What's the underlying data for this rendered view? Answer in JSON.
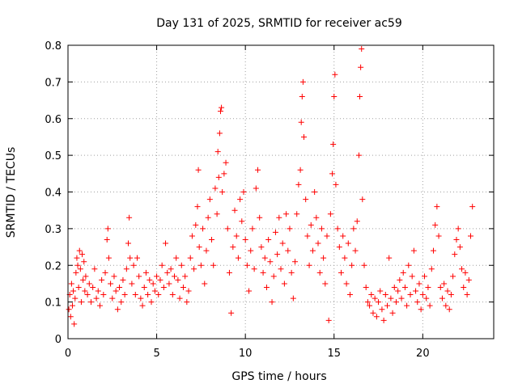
{
  "chart_data": {
    "type": "scatter",
    "title": "Day 131 of 2025, SRMTID for receiver ac59",
    "xlabel": "GPS time / hours",
    "ylabel": "SRMTID / TECUs",
    "xlim": [
      0,
      24
    ],
    "ylim": [
      0,
      0.8
    ],
    "xticks": [
      0,
      5,
      10,
      15,
      20
    ],
    "yticks": [
      0,
      0.1,
      0.2,
      0.3,
      0.4,
      0.5,
      0.6,
      0.7,
      0.8
    ],
    "xtick_labels": [
      "0",
      "5",
      "10",
      "15",
      "20"
    ],
    "ytick_labels": [
      "0",
      "0.1",
      "0.2",
      "0.3",
      "0.4",
      "0.5",
      "0.6",
      "0.7",
      "0.8"
    ],
    "grid": true,
    "marker": "+",
    "color": "#ff0000",
    "series": [
      {
        "name": "SRMTID",
        "points": [
          [
            0.05,
            0.08
          ],
          [
            0.1,
            0.12
          ],
          [
            0.15,
            0.06
          ],
          [
            0.2,
            0.15
          ],
          [
            0.25,
            0.09
          ],
          [
            0.3,
            0.13
          ],
          [
            0.35,
            0.04
          ],
          [
            0.4,
            0.11
          ],
          [
            0.45,
            0.18
          ],
          [
            0.5,
            0.22
          ],
          [
            0.55,
            0.2
          ],
          [
            0.6,
            0.14
          ],
          [
            0.65,
            0.24
          ],
          [
            0.7,
            0.19
          ],
          [
            0.75,
            0.1
          ],
          [
            0.8,
            0.23
          ],
          [
            0.85,
            0.16
          ],
          [
            0.9,
            0.21
          ],
          [
            0.95,
            0.13
          ],
          [
            1.0,
            0.17
          ],
          [
            1.1,
            0.12
          ],
          [
            1.2,
            0.15
          ],
          [
            1.3,
            0.1
          ],
          [
            1.4,
            0.14
          ],
          [
            1.5,
            0.19
          ],
          [
            1.6,
            0.11
          ],
          [
            1.7,
            0.13
          ],
          [
            1.8,
            0.09
          ],
          [
            1.9,
            0.16
          ],
          [
            2.0,
            0.12
          ],
          [
            2.1,
            0.18
          ],
          [
            2.2,
            0.27
          ],
          [
            2.25,
            0.3
          ],
          [
            2.3,
            0.22
          ],
          [
            2.4,
            0.15
          ],
          [
            2.5,
            0.11
          ],
          [
            2.6,
            0.17
          ],
          [
            2.7,
            0.13
          ],
          [
            2.8,
            0.08
          ],
          [
            2.9,
            0.14
          ],
          [
            3.0,
            0.1
          ],
          [
            3.1,
            0.16
          ],
          [
            3.2,
            0.12
          ],
          [
            3.3,
            0.19
          ],
          [
            3.4,
            0.26
          ],
          [
            3.45,
            0.33
          ],
          [
            3.5,
            0.22
          ],
          [
            3.6,
            0.15
          ],
          [
            3.7,
            0.2
          ],
          [
            3.8,
            0.12
          ],
          [
            3.9,
            0.22
          ],
          [
            4.0,
            0.17
          ],
          [
            4.1,
            0.11
          ],
          [
            4.2,
            0.09
          ],
          [
            4.3,
            0.14
          ],
          [
            4.4,
            0.18
          ],
          [
            4.5,
            0.12
          ],
          [
            4.6,
            0.16
          ],
          [
            4.7,
            0.1
          ],
          [
            4.8,
            0.15
          ],
          [
            4.9,
            0.13
          ],
          [
            5.0,
            0.17
          ],
          [
            5.1,
            0.12
          ],
          [
            5.2,
            0.16
          ],
          [
            5.3,
            0.2
          ],
          [
            5.4,
            0.14
          ],
          [
            5.5,
            0.26
          ],
          [
            5.6,
            0.18
          ],
          [
            5.7,
            0.15
          ],
          [
            5.8,
            0.19
          ],
          [
            5.9,
            0.12
          ],
          [
            6.0,
            0.17
          ],
          [
            6.1,
            0.22
          ],
          [
            6.2,
            0.16
          ],
          [
            6.3,
            0.11
          ],
          [
            6.4,
            0.2
          ],
          [
            6.5,
            0.14
          ],
          [
            6.6,
            0.17
          ],
          [
            6.7,
            0.1
          ],
          [
            6.8,
            0.13
          ],
          [
            6.9,
            0.22
          ],
          [
            7.0,
            0.28
          ],
          [
            7.1,
            0.19
          ],
          [
            7.2,
            0.31
          ],
          [
            7.3,
            0.36
          ],
          [
            7.35,
            0.46
          ],
          [
            7.4,
            0.25
          ],
          [
            7.5,
            0.2
          ],
          [
            7.6,
            0.3
          ],
          [
            7.7,
            0.15
          ],
          [
            7.8,
            0.24
          ],
          [
            7.9,
            0.33
          ],
          [
            8.0,
            0.38
          ],
          [
            8.1,
            0.27
          ],
          [
            8.2,
            0.2
          ],
          [
            8.3,
            0.41
          ],
          [
            8.4,
            0.34
          ],
          [
            8.45,
            0.51
          ],
          [
            8.5,
            0.44
          ],
          [
            8.55,
            0.56
          ],
          [
            8.6,
            0.62
          ],
          [
            8.65,
            0.63
          ],
          [
            8.7,
            0.4
          ],
          [
            8.8,
            0.45
          ],
          [
            8.9,
            0.48
          ],
          [
            9.0,
            0.3
          ],
          [
            9.1,
            0.18
          ],
          [
            9.2,
            0.07
          ],
          [
            9.3,
            0.25
          ],
          [
            9.4,
            0.35
          ],
          [
            9.5,
            0.28
          ],
          [
            9.6,
            0.22
          ],
          [
            9.7,
            0.38
          ],
          [
            9.8,
            0.32
          ],
          [
            9.9,
            0.4
          ],
          [
            10.0,
            0.27
          ],
          [
            10.1,
            0.2
          ],
          [
            10.2,
            0.13
          ],
          [
            10.3,
            0.24
          ],
          [
            10.4,
            0.3
          ],
          [
            10.5,
            0.19
          ],
          [
            10.6,
            0.41
          ],
          [
            10.7,
            0.46
          ],
          [
            10.8,
            0.33
          ],
          [
            10.9,
            0.25
          ],
          [
            11.0,
            0.18
          ],
          [
            11.1,
            0.22
          ],
          [
            11.2,
            0.14
          ],
          [
            11.3,
            0.27
          ],
          [
            11.4,
            0.21
          ],
          [
            11.5,
            0.1
          ],
          [
            11.6,
            0.17
          ],
          [
            11.7,
            0.29
          ],
          [
            11.8,
            0.23
          ],
          [
            11.9,
            0.33
          ],
          [
            12.0,
            0.19
          ],
          [
            12.1,
            0.26
          ],
          [
            12.2,
            0.15
          ],
          [
            12.3,
            0.34
          ],
          [
            12.4,
            0.24
          ],
          [
            12.5,
            0.3
          ],
          [
            12.6,
            0.18
          ],
          [
            12.7,
            0.11
          ],
          [
            12.8,
            0.21
          ],
          [
            12.9,
            0.34
          ],
          [
            13.0,
            0.42
          ],
          [
            13.1,
            0.46
          ],
          [
            13.15,
            0.59
          ],
          [
            13.2,
            0.66
          ],
          [
            13.25,
            0.7
          ],
          [
            13.3,
            0.55
          ],
          [
            13.4,
            0.38
          ],
          [
            13.5,
            0.28
          ],
          [
            13.6,
            0.2
          ],
          [
            13.7,
            0.31
          ],
          [
            13.8,
            0.24
          ],
          [
            13.9,
            0.4
          ],
          [
            14.0,
            0.33
          ],
          [
            14.1,
            0.26
          ],
          [
            14.2,
            0.18
          ],
          [
            14.3,
            0.3
          ],
          [
            14.4,
            0.22
          ],
          [
            14.5,
            0.15
          ],
          [
            14.6,
            0.28
          ],
          [
            14.7,
            0.05
          ],
          [
            14.8,
            0.34
          ],
          [
            14.9,
            0.45
          ],
          [
            14.95,
            0.53
          ],
          [
            15.0,
            0.66
          ],
          [
            15.05,
            0.72
          ],
          [
            15.1,
            0.42
          ],
          [
            15.2,
            0.3
          ],
          [
            15.3,
            0.25
          ],
          [
            15.4,
            0.18
          ],
          [
            15.5,
            0.28
          ],
          [
            15.6,
            0.22
          ],
          [
            15.7,
            0.15
          ],
          [
            15.8,
            0.26
          ],
          [
            15.9,
            0.12
          ],
          [
            16.0,
            0.2
          ],
          [
            16.1,
            0.3
          ],
          [
            16.2,
            0.24
          ],
          [
            16.3,
            0.32
          ],
          [
            16.4,
            0.5
          ],
          [
            16.45,
            0.66
          ],
          [
            16.5,
            0.74
          ],
          [
            16.55,
            0.79
          ],
          [
            16.6,
            0.38
          ],
          [
            16.7,
            0.2
          ],
          [
            16.8,
            0.14
          ],
          [
            16.9,
            0.1
          ],
          [
            17.0,
            0.09
          ],
          [
            17.1,
            0.12
          ],
          [
            17.2,
            0.07
          ],
          [
            17.3,
            0.11
          ],
          [
            17.4,
            0.06
          ],
          [
            17.5,
            0.1
          ],
          [
            17.6,
            0.13
          ],
          [
            17.7,
            0.08
          ],
          [
            17.8,
            0.05
          ],
          [
            17.9,
            0.12
          ],
          [
            18.0,
            0.09
          ],
          [
            18.1,
            0.22
          ],
          [
            18.2,
            0.11
          ],
          [
            18.3,
            0.07
          ],
          [
            18.4,
            0.14
          ],
          [
            18.5,
            0.1
          ],
          [
            18.6,
            0.13
          ],
          [
            18.7,
            0.16
          ],
          [
            18.8,
            0.11
          ],
          [
            18.9,
            0.18
          ],
          [
            19.0,
            0.14
          ],
          [
            19.1,
            0.09
          ],
          [
            19.2,
            0.2
          ],
          [
            19.3,
            0.12
          ],
          [
            19.4,
            0.17
          ],
          [
            19.5,
            0.24
          ],
          [
            19.6,
            0.13
          ],
          [
            19.7,
            0.1
          ],
          [
            19.8,
            0.15
          ],
          [
            19.9,
            0.08
          ],
          [
            20.0,
            0.12
          ],
          [
            20.1,
            0.17
          ],
          [
            20.2,
            0.11
          ],
          [
            20.3,
            0.14
          ],
          [
            20.4,
            0.09
          ],
          [
            20.5,
            0.19
          ],
          [
            20.6,
            0.24
          ],
          [
            20.7,
            0.31
          ],
          [
            20.8,
            0.36
          ],
          [
            20.9,
            0.28
          ],
          [
            21.0,
            0.14
          ],
          [
            21.1,
            0.11
          ],
          [
            21.2,
            0.15
          ],
          [
            21.3,
            0.09
          ],
          [
            21.4,
            0.13
          ],
          [
            21.5,
            0.08
          ],
          [
            21.6,
            0.12
          ],
          [
            21.7,
            0.17
          ],
          [
            21.8,
            0.23
          ],
          [
            21.9,
            0.27
          ],
          [
            22.0,
            0.3
          ],
          [
            22.1,
            0.25
          ],
          [
            22.2,
            0.19
          ],
          [
            22.3,
            0.14
          ],
          [
            22.4,
            0.18
          ],
          [
            22.5,
            0.12
          ],
          [
            22.6,
            0.16
          ],
          [
            22.7,
            0.28
          ],
          [
            22.8,
            0.36
          ]
        ]
      }
    ]
  }
}
